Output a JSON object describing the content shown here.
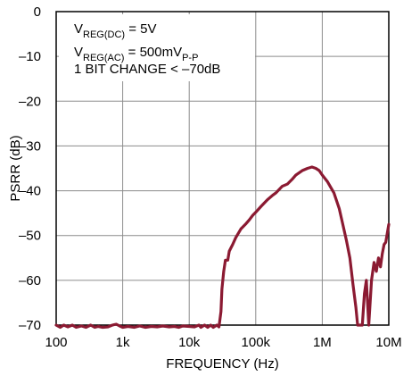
{
  "chart_data": {
    "type": "line",
    "xlabel": "FREQUENCY (Hz)",
    "ylabel": "PSRR (dB)",
    "x_scale": "log",
    "xlim": [
      100,
      10000000
    ],
    "ylim": [
      -70,
      0
    ],
    "grid": true,
    "x_ticks": [
      {
        "value": 100,
        "label": "100"
      },
      {
        "value": 1000,
        "label": "1k"
      },
      {
        "value": 10000,
        "label": "10k"
      },
      {
        "value": 100000,
        "label": "100k"
      },
      {
        "value": 1000000,
        "label": "1M"
      },
      {
        "value": 10000000,
        "label": "10M"
      }
    ],
    "y_ticks": [
      {
        "value": 0,
        "label": "0"
      },
      {
        "value": -10,
        "label": "–10"
      },
      {
        "value": -20,
        "label": "–20"
      },
      {
        "value": -30,
        "label": "–30"
      },
      {
        "value": -40,
        "label": "–40"
      },
      {
        "value": -50,
        "label": "–50"
      },
      {
        "value": -60,
        "label": "–60"
      },
      {
        "value": -70,
        "label": "–70"
      }
    ],
    "annotation": [
      {
        "main": "V",
        "sub": "REG(DC)",
        "rest": " = 5V"
      },
      {
        "main": "V",
        "sub": "REG(AC)",
        "rest": " = 500mV",
        "sub2": "P-P"
      },
      {
        "main": "1 BIT CHANGE < –70dB"
      }
    ],
    "series": [
      {
        "color": "#8b1a32",
        "points": [
          [
            100,
            -70
          ],
          [
            115,
            -70.5
          ],
          [
            130,
            -70
          ],
          [
            150,
            -70.4
          ],
          [
            175,
            -70
          ],
          [
            200,
            -70.5
          ],
          [
            240,
            -70.2
          ],
          [
            280,
            -70.5
          ],
          [
            330,
            -70
          ],
          [
            380,
            -70.5
          ],
          [
            430,
            -70.3
          ],
          [
            500,
            -70.5
          ],
          [
            600,
            -70.4
          ],
          [
            700,
            -70
          ],
          [
            800,
            -69.8
          ],
          [
            900,
            -70.2
          ],
          [
            1000,
            -70.5
          ],
          [
            1200,
            -70.3
          ],
          [
            1500,
            -70.5
          ],
          [
            1800,
            -70.2
          ],
          [
            2200,
            -70.5
          ],
          [
            2700,
            -70.3
          ],
          [
            3300,
            -70.4
          ],
          [
            4000,
            -70.2
          ],
          [
            5000,
            -70.4
          ],
          [
            6000,
            -70.3
          ],
          [
            7000,
            -70.5
          ],
          [
            8000,
            -70.2
          ],
          [
            10000,
            -70.3
          ],
          [
            12000,
            -70.4
          ],
          [
            14000,
            -70
          ],
          [
            15000,
            -70.5
          ],
          [
            17000,
            -70
          ],
          [
            19000,
            -70.5
          ],
          [
            21000,
            -70
          ],
          [
            23000,
            -70.5
          ],
          [
            26000,
            -70
          ],
          [
            28000,
            -70.4
          ],
          [
            30000,
            -67
          ],
          [
            31000,
            -62
          ],
          [
            33000,
            -58
          ],
          [
            35000,
            -55.5
          ],
          [
            38000,
            -55.5
          ],
          [
            40000,
            -53.5
          ],
          [
            45000,
            -52
          ],
          [
            50000,
            -50.5
          ],
          [
            60000,
            -48.5
          ],
          [
            70000,
            -47.5
          ],
          [
            80000,
            -46.5
          ],
          [
            90000,
            -45.5
          ],
          [
            100000,
            -44.8
          ],
          [
            120000,
            -43.5
          ],
          [
            150000,
            -42
          ],
          [
            180000,
            -41
          ],
          [
            200000,
            -40.5
          ],
          [
            250000,
            -39
          ],
          [
            300000,
            -38.5
          ],
          [
            350000,
            -37.5
          ],
          [
            400000,
            -36.5
          ],
          [
            500000,
            -35.5
          ],
          [
            600000,
            -35
          ],
          [
            700000,
            -34.7
          ],
          [
            800000,
            -35
          ],
          [
            900000,
            -35.5
          ],
          [
            1000000,
            -36.5
          ],
          [
            1200000,
            -38
          ],
          [
            1500000,
            -40.5
          ],
          [
            1800000,
            -44
          ],
          [
            2000000,
            -47
          ],
          [
            2300000,
            -51
          ],
          [
            2600000,
            -55
          ],
          [
            2900000,
            -61
          ],
          [
            3200000,
            -66
          ],
          [
            3400000,
            -70
          ],
          [
            3700000,
            -70
          ],
          [
            4000000,
            -70
          ],
          [
            4300000,
            -63
          ],
          [
            4600000,
            -60
          ],
          [
            5000000,
            -70
          ],
          [
            5500000,
            -60
          ],
          [
            6000000,
            -56
          ],
          [
            6500000,
            -58
          ],
          [
            7000000,
            -55
          ],
          [
            7500000,
            -57
          ],
          [
            8000000,
            -54
          ],
          [
            8500000,
            -52
          ],
          [
            9000000,
            -51.5
          ],
          [
            10000000,
            -47.5
          ]
        ]
      }
    ]
  }
}
